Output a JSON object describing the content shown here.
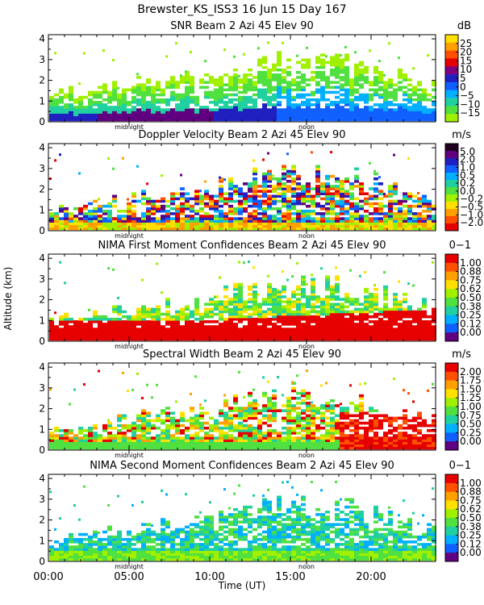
{
  "title": "Brewster_KS_ISS3  16 Jun 15 Day 167",
  "xlabel": "Time (UT)",
  "ylabel": "Altitude (km)",
  "midnight_label": "midnight",
  "noon_label": "noon",
  "midnight_hour": 5.0,
  "noon_hour": 16.0,
  "chart_data": [
    {
      "type": "heatmap",
      "title": "SNR Beam 2 Azi  45 Elev 90",
      "unit": "dB",
      "xlim": [
        0,
        24
      ],
      "ylim": [
        0,
        4.2
      ],
      "xticks": [
        0,
        5,
        10,
        15,
        20
      ],
      "xtick_labels": [
        "00:00",
        "05:00",
        "10:00",
        "15:00",
        "20:00"
      ],
      "yticks": [
        0,
        1,
        2,
        3,
        4
      ],
      "colorbar": {
        "labels": [
          "25",
          "20",
          "15",
          "10",
          "5",
          "0",
          "−5",
          "−10",
          "−15"
        ],
        "colors": [
          "#ffe000",
          "#ffa000",
          "#ff5000",
          "#e60000",
          "#800080",
          "#2020c0",
          "#1060ff",
          "#00b0ff",
          "#20d0a0",
          "#50e040",
          "#a0f000"
        ]
      }
    },
    {
      "type": "heatmap",
      "title": "Doppler Velocity Beam 2 Azi  45 Elev 90",
      "unit": "m/s",
      "xlim": [
        0,
        24
      ],
      "ylim": [
        0,
        4.2
      ],
      "xticks": [
        0,
        5,
        10,
        15,
        20
      ],
      "xtick_labels": [
        "00:00",
        "05:00",
        "10:00",
        "15:00",
        "20:00"
      ],
      "yticks": [
        0,
        1,
        2,
        3,
        4
      ],
      "colorbar": {
        "labels": [
          "5.0",
          "2.0",
          "1.0",
          "0.5",
          "0.2",
          "0.0",
          "−0.2",
          "−0.5",
          "−1.0",
          "−2.0"
        ],
        "colors": [
          "#200020",
          "#600080",
          "#2020c0",
          "#1060ff",
          "#00b0ff",
          "#20d0a0",
          "#50e040",
          "#a0f000",
          "#ffe000",
          "#ffa000",
          "#ff5000",
          "#e60000"
        ]
      }
    },
    {
      "type": "heatmap",
      "title": "NIMA First Moment Confidences Beam 2 Azi  45 Elev 90",
      "unit": "0−1",
      "xlim": [
        0,
        24
      ],
      "ylim": [
        0,
        4.2
      ],
      "xticks": [
        0,
        5,
        10,
        15,
        20
      ],
      "xtick_labels": [
        "00:00",
        "05:00",
        "10:00",
        "15:00",
        "20:00"
      ],
      "yticks": [
        0,
        1,
        2,
        3,
        4
      ],
      "colorbar": {
        "labels": [
          "1.00",
          "0.88",
          "0.75",
          "0.62",
          "0.50",
          "0.38",
          "0.25",
          "0.12",
          "0.00"
        ],
        "colors": [
          "#e60000",
          "#ff5000",
          "#ffa000",
          "#ffe000",
          "#a0f000",
          "#50e040",
          "#20d0a0",
          "#00b0ff",
          "#1060ff",
          "#600080"
        ]
      }
    },
    {
      "type": "heatmap",
      "title": "Spectral Width Beam 2 Azi  45 Elev 90",
      "unit": "m/s",
      "xlim": [
        0,
        24
      ],
      "ylim": [
        0,
        4.2
      ],
      "xticks": [
        0,
        5,
        10,
        15,
        20
      ],
      "xtick_labels": [
        "00:00",
        "05:00",
        "10:00",
        "15:00",
        "20:00"
      ],
      "yticks": [
        0,
        1,
        2,
        3,
        4
      ],
      "colorbar": {
        "labels": [
          "2.00",
          "1.75",
          "1.50",
          "1.25",
          "1.00",
          "0.75",
          "0.50",
          "0.25",
          "0.00"
        ],
        "colors": [
          "#e60000",
          "#ff5000",
          "#ffa000",
          "#ffe000",
          "#a0f000",
          "#50e040",
          "#20d0a0",
          "#00b0ff",
          "#1060ff",
          "#600080"
        ]
      }
    },
    {
      "type": "heatmap",
      "title": "NIMA Second Moment Confidences Beam 2 Azi  45 Elev 90",
      "unit": "0−1",
      "xlim": [
        0,
        24
      ],
      "ylim": [
        0,
        4.2
      ],
      "xticks": [
        0,
        5,
        10,
        15,
        20
      ],
      "xtick_labels": [
        "00:00",
        "05:00",
        "10:00",
        "15:00",
        "20:00"
      ],
      "yticks": [
        0,
        1,
        2,
        3,
        4
      ],
      "colorbar": {
        "labels": [
          "1.00",
          "0.88",
          "0.75",
          "0.62",
          "0.50",
          "0.38",
          "0.25",
          "0.12",
          "0.00"
        ],
        "colors": [
          "#e60000",
          "#ff5000",
          "#ffa000",
          "#ffe000",
          "#a0f000",
          "#50e040",
          "#20d0a0",
          "#00b0ff",
          "#1060ff",
          "#600080"
        ]
      }
    }
  ]
}
